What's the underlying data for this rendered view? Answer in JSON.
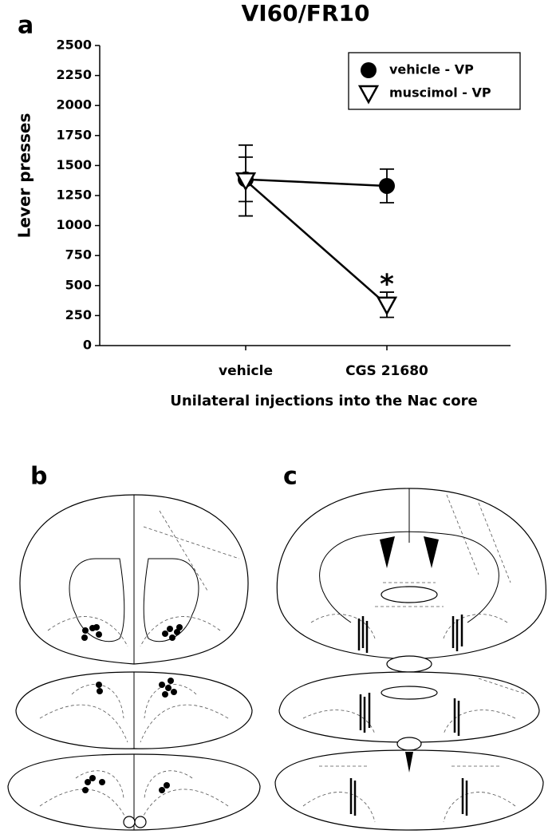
{
  "chart_data": {
    "type": "line",
    "panel_label": "a",
    "title": "VI60/FR10",
    "x_label": "Unilateral injections into the Nac core",
    "y_label": "Lever presses",
    "categories": [
      "vehicle",
      "CGS 21680"
    ],
    "series": [
      {
        "name": "vehicle - VP",
        "marker": "circle",
        "color": "#000000",
        "values": [
          1385,
          1330
        ],
        "errors": [
          185,
          140
        ]
      },
      {
        "name": "muscimol - VP",
        "marker": "triangle-down",
        "color": "#000000",
        "values": [
          1375,
          340
        ],
        "errors": [
          295,
          105
        ]
      }
    ],
    "annotations": [
      {
        "text": "*",
        "category": 1,
        "value": 580
      }
    ],
    "ylim": [
      0,
      2500
    ],
    "yticks": [
      0,
      250,
      500,
      750,
      1000,
      1250,
      1500,
      1750,
      2000,
      2250,
      2500
    ],
    "grid": false,
    "legend": "upper right"
  },
  "panels": [
    {
      "label": "b"
    },
    {
      "label": "c"
    }
  ]
}
